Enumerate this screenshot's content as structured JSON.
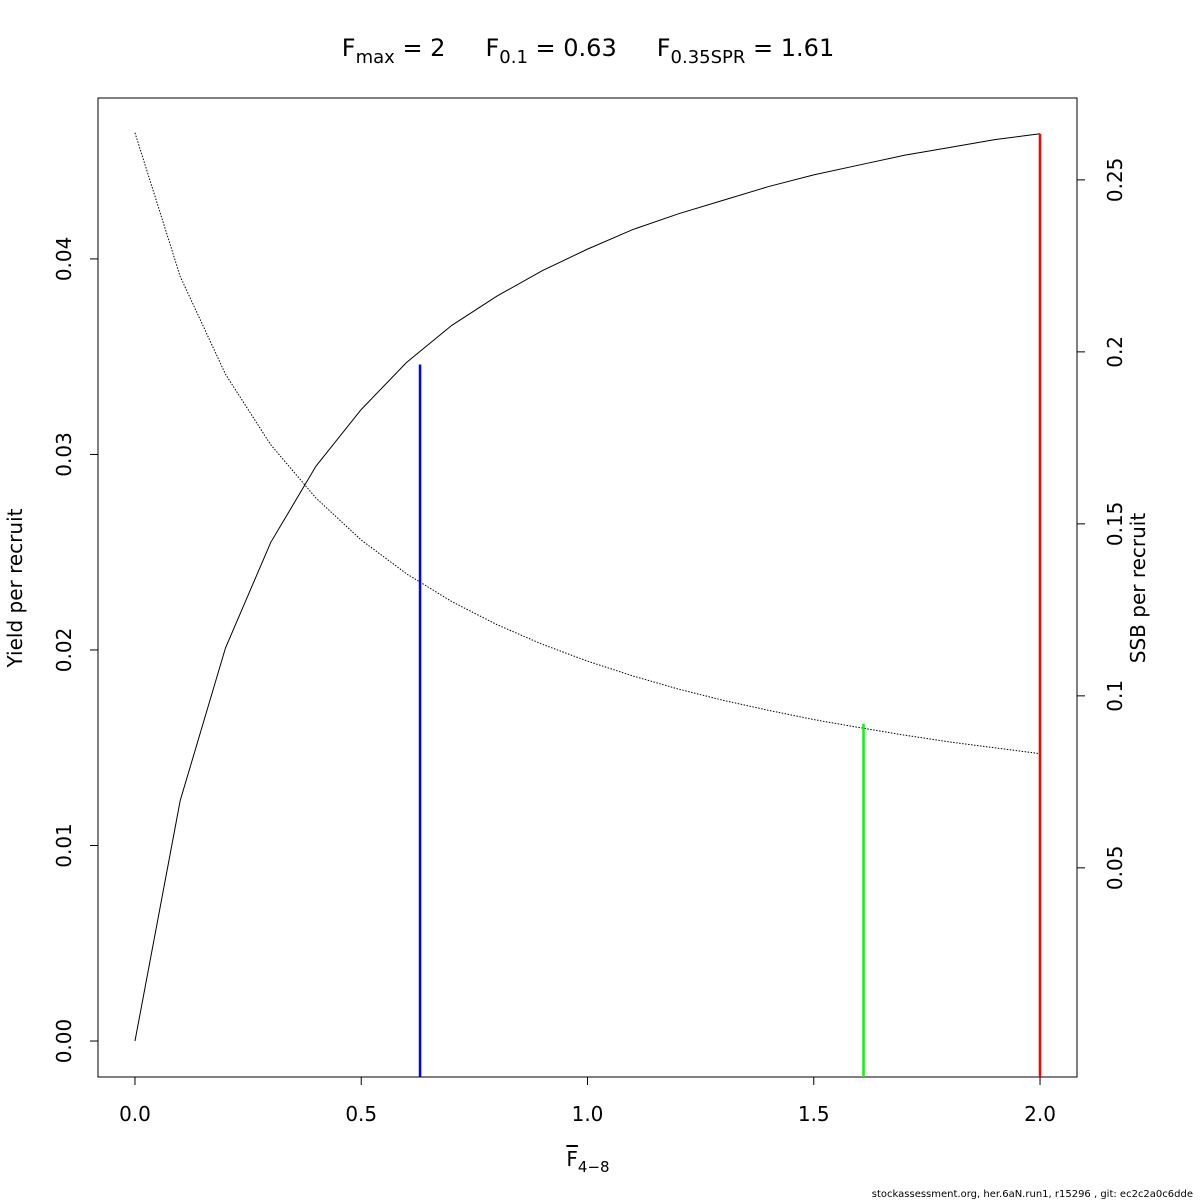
{
  "chart_data": {
    "type": "line",
    "title_parts": [
      {
        "main": "F",
        "sub": "max",
        "tail": " = 2"
      },
      {
        "main": "F",
        "sub": "0.1",
        "tail": " = 0.63"
      },
      {
        "main": "F",
        "sub": "0.35SPR",
        "tail": " = 1.61"
      }
    ],
    "x_label": {
      "main": "F",
      "sub": "4−8"
    },
    "y_label": "Yield per recruit",
    "y2_label": "SSB per recruit",
    "footer": "stockassessment.org, her.6aN.run1, r15296 , git: ec2c2a0c6dde",
    "x": [
      0,
      0.1,
      0.2,
      0.3,
      0.4,
      0.5,
      0.6,
      0.7,
      0.8,
      0.9,
      1.0,
      1.1,
      1.2,
      1.3,
      1.4,
      1.5,
      1.6,
      1.7,
      1.8,
      1.9,
      2.0
    ],
    "series": [
      {
        "color": "#000000",
        "dash": "solid",
        "axis": "y",
        "values": [
          0,
          0.0123,
          0.0201,
          0.0255,
          0.0294,
          0.0323,
          0.0347,
          0.0366,
          0.0381,
          0.0394,
          0.0405,
          0.0415,
          0.0423,
          0.043,
          0.0437,
          0.0443,
          0.0448,
          0.0453,
          0.0457,
          0.0461,
          0.0464
        ]
      },
      {
        "color": "#000000",
        "dash": "dotted",
        "axis": "y2",
        "values": [
          0.2637,
          0.2219,
          0.1935,
          0.173,
          0.1575,
          0.1453,
          0.1355,
          0.1274,
          0.1207,
          0.115,
          0.1101,
          0.1058,
          0.102,
          0.0987,
          0.0958,
          0.0931,
          0.0908,
          0.0886,
          0.0866,
          0.0849,
          0.0832
        ]
      }
    ],
    "reference_lines": [
      {
        "x": 0.63,
        "top": 0.0346,
        "axis": "y",
        "color": "#0000ff"
      },
      {
        "x": 1.61,
        "top": 0.0919,
        "axis": "y2",
        "color": "#00ff00"
      },
      {
        "x": 2.0,
        "top": 0.0464,
        "axis": "y",
        "color": "#ff0000"
      }
    ],
    "xlim": [
      -0.0817,
      2.0817
    ],
    "xticks": [
      {
        "value": 0,
        "label": "0.0"
      },
      {
        "value": 0.5,
        "label": "0.5"
      },
      {
        "value": 1,
        "label": "1.0"
      },
      {
        "value": 1.5,
        "label": "1.5"
      },
      {
        "value": 2,
        "label": "2.0"
      }
    ],
    "ylim": [
      -0.00184,
      0.04823
    ],
    "yticks": [
      {
        "value": 0,
        "label": "0.00"
      },
      {
        "value": 0.01,
        "label": "0.01"
      },
      {
        "value": 0.02,
        "label": "0.02"
      },
      {
        "value": 0.03,
        "label": "0.03"
      },
      {
        "value": 0.04,
        "label": "0.04"
      }
    ],
    "y2lim": [
      -0.0108,
      0.2738
    ],
    "y2ticks": [
      0.05,
      0.1,
      0.15,
      0.2,
      0.25
    ]
  }
}
